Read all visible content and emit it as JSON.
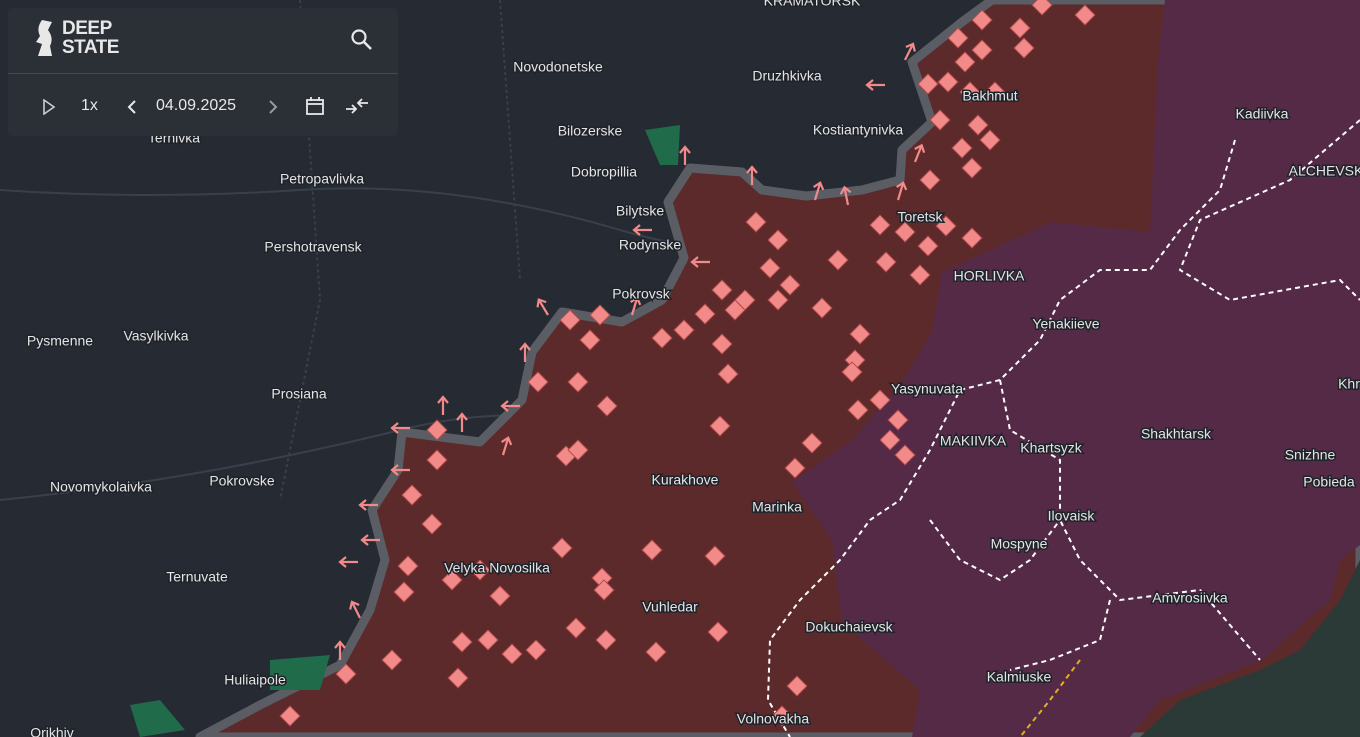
{
  "header": {
    "logo": [
      "DEEP",
      "STATE"
    ]
  },
  "controls": {
    "speed": "1x",
    "date": "04.09.2025"
  },
  "places": [
    "KRAMATORSK",
    "Novodonetske",
    "Druzhkivka",
    "Bakhmut",
    "Bilozerske",
    "Kostiantynivka",
    "Ternivka",
    "Dobropillia",
    "Petropavlivka",
    "Kadiivka",
    "ALCHEVSK",
    "Bilytske",
    "Toretsk",
    "Rodynske",
    "Pershotravensk",
    "HORLIVKA",
    "Pokrovsk",
    "Yenakiieve",
    "Pysmenne",
    "Vasylkivka",
    "Prosiana",
    "Yasynuvata",
    "Khr",
    "MAKIIVKA",
    "Khartsyzk",
    "Shakhtarsk",
    "Snizhne",
    "Pobieda",
    "Kurakhove",
    "Novomykolaivka",
    "Pokrovske",
    "Marinka",
    "Ilovaisk",
    "Mospyne",
    "Velyka Novosilka",
    "Ternuvate",
    "Amvrosiivka",
    "Vuhledar",
    "Dokuchaievsk",
    "Huliaipole",
    "Kalmiuske",
    "Volnovakha",
    "Orikhiv"
  ]
}
